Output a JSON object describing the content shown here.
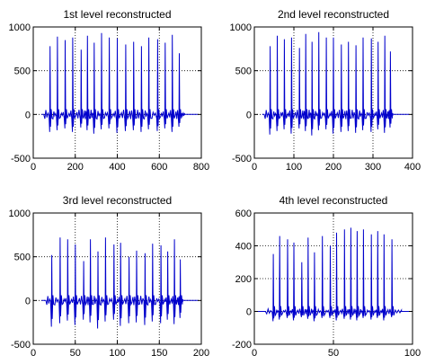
{
  "chart_data": [
    {
      "type": "line",
      "title": "1st level reconstructed",
      "xlim": [
        0,
        800
      ],
      "ylim": [
        -500,
        1000
      ],
      "xticks": [
        0,
        200,
        400,
        600,
        800
      ],
      "yticks": [
        -500,
        0,
        500,
        1000
      ],
      "xtick_labels": [
        "0",
        "200",
        "400",
        "600",
        "800"
      ],
      "ytick_labels": [
        "-500",
        "0",
        "500",
        "1000"
      ],
      "grid": true,
      "signal_range": [
        50,
        720
      ],
      "spike_x": [
        80,
        115,
        152,
        188,
        228,
        258,
        290,
        325,
        362,
        400,
        440,
        478,
        515,
        550,
        592,
        628,
        662,
        695
      ],
      "spike_peaks": [
        780,
        890,
        850,
        880,
        740,
        900,
        820,
        930,
        880,
        870,
        800,
        830,
        780,
        880,
        860,
        820,
        910,
        700
      ],
      "spike_dips": [
        -200,
        -180,
        -160,
        -200,
        -150,
        -180,
        -220,
        -170,
        -160,
        -210,
        -190,
        -180,
        -200,
        -170,
        -190,
        -160,
        -200,
        -140
      ],
      "series_color": "#0000cc"
    },
    {
      "type": "line",
      "title": "2nd level reconstructed",
      "xlim": [
        0,
        400
      ],
      "ylim": [
        -500,
        1000
      ],
      "xticks": [
        0,
        100,
        200,
        300,
        400
      ],
      "yticks": [
        -500,
        0,
        500,
        1000
      ],
      "xtick_labels": [
        "0",
        "100",
        "200",
        "300",
        "400"
      ],
      "ytick_labels": [
        "-500",
        "0",
        "500",
        "1000"
      ],
      "grid": true,
      "signal_range": [
        25,
        350
      ],
      "spike_x": [
        40,
        58,
        76,
        94,
        114,
        130,
        146,
        163,
        182,
        200,
        220,
        238,
        257,
        275,
        296,
        313,
        330,
        344
      ],
      "spike_peaks": [
        780,
        900,
        860,
        880,
        760,
        920,
        830,
        940,
        880,
        880,
        800,
        830,
        790,
        880,
        870,
        830,
        900,
        720
      ],
      "spike_dips": [
        -230,
        -190,
        -170,
        -220,
        -160,
        -190,
        -240,
        -180,
        -170,
        -220,
        -200,
        -190,
        -210,
        -180,
        -200,
        -170,
        -210,
        -150
      ],
      "series_color": "#0000cc"
    },
    {
      "type": "line",
      "title": "3rd level reconstructed",
      "xlim": [
        0,
        200
      ],
      "ylim": [
        -500,
        1000
      ],
      "xticks": [
        0,
        50,
        100,
        150,
        200
      ],
      "yticks": [
        -500,
        0,
        500,
        1000
      ],
      "xtick_labels": [
        "0",
        "50",
        "100",
        "150",
        "200"
      ],
      "ytick_labels": [
        "-500",
        "0",
        "500",
        "1000"
      ],
      "grid": true,
      "signal_range": [
        15,
        178
      ],
      "spike_x": [
        22,
        32,
        41,
        50,
        60,
        68,
        77,
        86,
        96,
        104,
        114,
        123,
        133,
        142,
        152,
        160,
        168,
        175
      ],
      "spike_peaks": [
        520,
        720,
        700,
        640,
        450,
        700,
        560,
        720,
        640,
        660,
        500,
        570,
        540,
        650,
        630,
        560,
        700,
        470
      ],
      "spike_dips": [
        -300,
        -260,
        -230,
        -280,
        -220,
        -250,
        -320,
        -240,
        -220,
        -290,
        -260,
        -250,
        -280,
        -240,
        -260,
        -220,
        -270,
        -200
      ],
      "series_color": "#0000cc"
    },
    {
      "type": "line",
      "title": "4th level reconstructed",
      "xlim": [
        0,
        100
      ],
      "ylim": [
        -200,
        600
      ],
      "xticks": [
        0,
        50,
        100
      ],
      "yticks": [
        -200,
        0,
        200,
        400,
        600
      ],
      "xtick_labels": [
        "0",
        "50",
        "100"
      ],
      "ytick_labels": [
        "-200",
        "0",
        "200",
        "400",
        "600"
      ],
      "grid": true,
      "signal_range": [
        7,
        93
      ],
      "spike_x": [
        12,
        16,
        21,
        25,
        30,
        34,
        38,
        43,
        48,
        52,
        57,
        61,
        65,
        69,
        74,
        78,
        82,
        87
      ],
      "spike_peaks": [
        350,
        460,
        440,
        420,
        300,
        450,
        360,
        460,
        400,
        480,
        500,
        510,
        490,
        500,
        470,
        490,
        470,
        440
      ],
      "spike_dips": [
        -60,
        -50,
        -40,
        -55,
        -35,
        -45,
        -60,
        -40,
        -40,
        -55,
        -45,
        -50,
        -55,
        -40,
        -50,
        -40,
        -55,
        -35
      ],
      "series_color": "#0000cc"
    }
  ]
}
